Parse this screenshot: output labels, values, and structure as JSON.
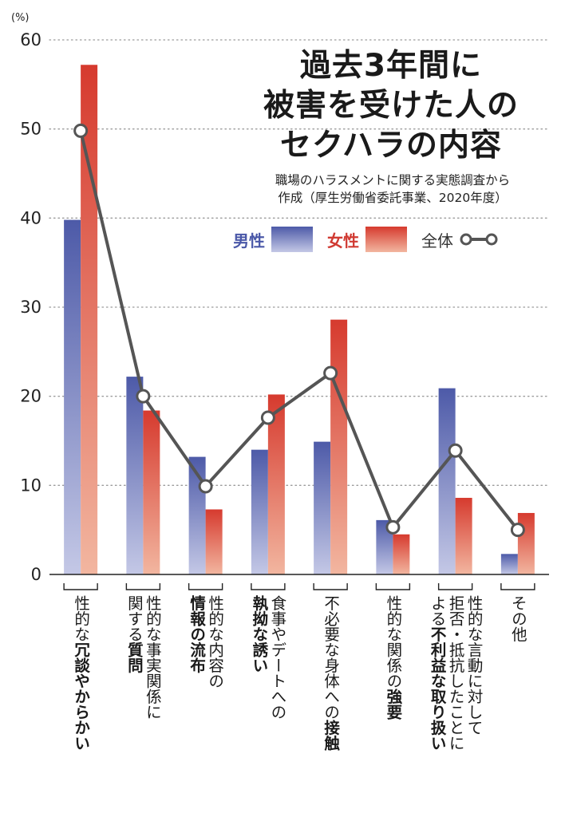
{
  "chart_data": {
    "type": "bar",
    "title_lines": [
      "過去3年間に",
      "被害を受けた人の",
      "セクハラの内容"
    ],
    "subtitle_lines": [
      "職場のハラスメントに関する実態調査から",
      "作成（厚生労働省委託事業、2020年度）"
    ],
    "y_unit": "(%)",
    "ylim": [
      0,
      60
    ],
    "yticks": [
      "0",
      "10",
      "20",
      "30",
      "40",
      "50",
      "60"
    ],
    "grid": true,
    "legend_placement": "top-right",
    "categories": [
      {
        "lines": [
          {
            "normal": "性的な",
            "bold": "冗談やからかい"
          }
        ]
      },
      {
        "lines": [
          {
            "normal": "性的な事実関係に",
            "bold": ""
          },
          {
            "normal": "関する",
            "bold": "質問"
          }
        ]
      },
      {
        "lines": [
          {
            "normal": "性的な内容の",
            "bold": ""
          },
          {
            "normal": "",
            "bold": "情報の流布"
          }
        ]
      },
      {
        "lines": [
          {
            "normal": "食事やデートへの",
            "bold": ""
          },
          {
            "normal": "",
            "bold": "執拗な誘い"
          }
        ]
      },
      {
        "lines": [
          {
            "normal": "不必要な身体への",
            "bold": "接触"
          }
        ]
      },
      {
        "lines": [
          {
            "normal": "性的な関係の",
            "bold": "強要"
          }
        ]
      },
      {
        "lines": [
          {
            "normal": "性的な言動に対して",
            "bold": ""
          },
          {
            "normal": "拒否・抵抗したことに",
            "bold": ""
          },
          {
            "normal": "よる",
            "bold": "不利益な取り扱い"
          }
        ]
      },
      {
        "lines": [
          {
            "normal": "その他",
            "bold": ""
          }
        ]
      }
    ],
    "series": [
      {
        "name": "男性",
        "type": "bar",
        "color": "#4d5aa8",
        "values": [
          39.8,
          22.2,
          13.2,
          14.0,
          14.9,
          6.1,
          20.9,
          2.3
        ]
      },
      {
        "name": "女性",
        "type": "bar",
        "color": "#d63a2e",
        "values": [
          57.2,
          18.4,
          7.3,
          20.2,
          28.6,
          4.5,
          8.6,
          6.9
        ]
      },
      {
        "name": "全体",
        "type": "line",
        "color": "#555555",
        "values": [
          49.8,
          20.0,
          9.9,
          17.6,
          22.6,
          5.3,
          13.9,
          5.0
        ]
      }
    ]
  }
}
